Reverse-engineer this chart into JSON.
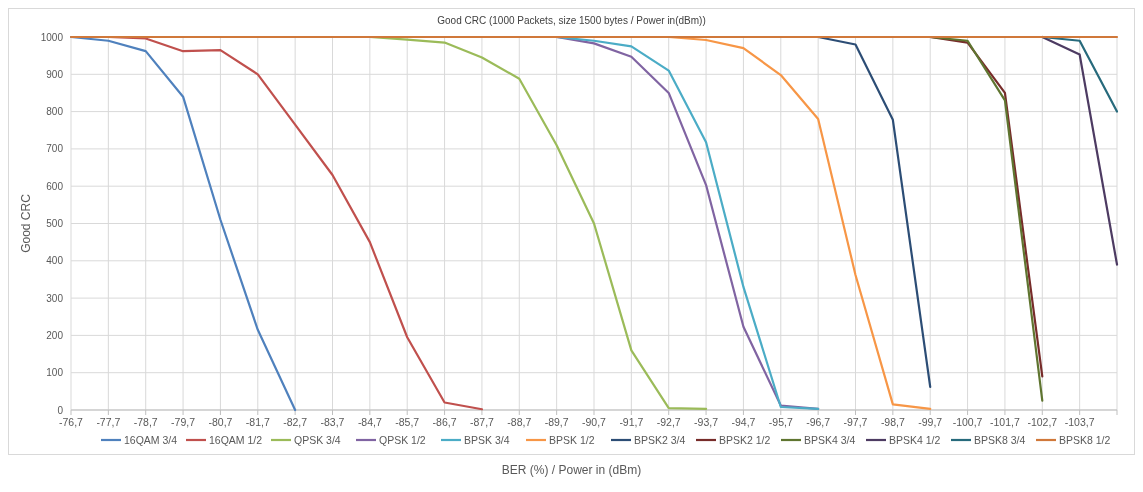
{
  "chart_data": {
    "type": "line",
    "title": "Good CRC (1000 Packets, size 1500 bytes /  Power in(dBm))",
    "xlabel": "BER (%) / Power in (dBm)",
    "ylabel": "Good CRC",
    "categories": [
      "-76,7",
      "-77,7",
      "-78,7",
      "-79,7",
      "-80,7",
      "-81,7",
      "-82,7",
      "-83,7",
      "-84,7",
      "-85,7",
      "-86,7",
      "-87,7",
      "-88,7",
      "-89,7",
      "-90,7",
      "-91,7",
      "-92,7",
      "-93,7",
      "-94,7",
      "-95,7",
      "-96,7",
      "-97,7",
      "-98,7",
      "-99,7",
      "-100,7",
      "-101,7",
      "-102,7",
      "-103,7",
      null
    ],
    "ylim": [
      0,
      1000
    ],
    "yticks": [
      0,
      100,
      200,
      300,
      400,
      500,
      600,
      700,
      800,
      900,
      1000
    ],
    "grid": true,
    "legend": "bottom",
    "line_style": "solid",
    "marker": "none",
    "series": [
      {
        "name": "16QAM 3/4",
        "color": "#4f81bd",
        "values": [
          1000,
          990,
          962,
          840,
          510,
          215,
          0,
          null,
          null,
          null,
          null,
          null,
          null,
          null,
          null,
          null,
          null,
          null,
          null,
          null,
          null,
          null,
          null,
          null,
          null,
          null,
          null,
          null,
          null
        ]
      },
      {
        "name": "16QAM 1/2",
        "color": "#c0504d",
        "values": [
          null,
          1000,
          996,
          962,
          965,
          900,
          765,
          630,
          450,
          195,
          20,
          2,
          null,
          null,
          null,
          null,
          null,
          null,
          null,
          null,
          null,
          null,
          null,
          null,
          null,
          null,
          null,
          null,
          null
        ]
      },
      {
        "name": "QPSK 3/4",
        "color": "#9bbb59",
        "values": [
          null,
          null,
          null,
          null,
          null,
          null,
          null,
          null,
          1000,
          993,
          985,
          945,
          888,
          710,
          500,
          160,
          5,
          3,
          null,
          null,
          null,
          null,
          null,
          null,
          null,
          null,
          null,
          null,
          null
        ]
      },
      {
        "name": "QPSK 1/2",
        "color": "#8064a2",
        "values": [
          null,
          null,
          null,
          null,
          null,
          null,
          null,
          null,
          null,
          null,
          null,
          null,
          null,
          1000,
          983,
          947,
          850,
          603,
          223,
          12,
          3,
          null,
          null,
          null,
          null,
          null,
          null,
          null,
          null
        ]
      },
      {
        "name": "BPSK 3/4",
        "color": "#4bacc6",
        "values": [
          null,
          null,
          null,
          null,
          null,
          null,
          null,
          null,
          null,
          null,
          null,
          null,
          null,
          1000,
          990,
          975,
          910,
          718,
          330,
          8,
          3,
          null,
          null,
          null,
          null,
          null,
          null,
          null,
          null
        ]
      },
      {
        "name": "BPSK 1/2",
        "color": "#f79646",
        "values": [
          null,
          null,
          null,
          null,
          null,
          null,
          null,
          null,
          null,
          null,
          null,
          null,
          null,
          null,
          null,
          null,
          1000,
          992,
          970,
          898,
          780,
          362,
          15,
          3,
          null,
          null,
          null,
          null,
          null
        ]
      },
      {
        "name": "BPSK2 3/4",
        "color": "#2c4d75",
        "values": [
          null,
          null,
          null,
          null,
          null,
          null,
          null,
          null,
          null,
          null,
          null,
          null,
          null,
          null,
          null,
          null,
          null,
          null,
          null,
          null,
          1000,
          980,
          778,
          62,
          null,
          null,
          null,
          null,
          null
        ]
      },
      {
        "name": "BPSK2 1/2",
        "color": "#772c2a",
        "values": [
          null,
          null,
          null,
          null,
          null,
          null,
          null,
          null,
          null,
          null,
          null,
          null,
          null,
          null,
          null,
          null,
          null,
          null,
          null,
          null,
          null,
          null,
          null,
          1000,
          985,
          850,
          90,
          null,
          null
        ]
      },
      {
        "name": "BPSK4 3/4",
        "color": "#5f7530",
        "values": [
          null,
          null,
          null,
          null,
          null,
          null,
          null,
          null,
          null,
          null,
          null,
          null,
          null,
          null,
          null,
          null,
          null,
          null,
          null,
          null,
          null,
          null,
          null,
          1000,
          990,
          830,
          25,
          null,
          null
        ]
      },
      {
        "name": "BPSK4 1/2",
        "color": "#4d3b62",
        "values": [
          null,
          null,
          null,
          null,
          null,
          null,
          null,
          null,
          null,
          null,
          null,
          null,
          null,
          null,
          null,
          null,
          null,
          null,
          null,
          null,
          null,
          null,
          null,
          null,
          null,
          null,
          1000,
          953,
          390
        ]
      },
      {
        "name": "BPSK8 3/4",
        "color": "#276a7c",
        "values": [
          null,
          null,
          null,
          null,
          null,
          null,
          null,
          null,
          null,
          null,
          null,
          null,
          null,
          null,
          null,
          null,
          null,
          null,
          null,
          null,
          null,
          null,
          null,
          null,
          null,
          null,
          1000,
          990,
          800
        ]
      },
      {
        "name": "BPSK8 1/2",
        "color": "#d0783a",
        "values": [
          1000,
          1000,
          1000,
          1000,
          1000,
          1000,
          1000,
          1000,
          1000,
          1000,
          1000,
          1000,
          1000,
          1000,
          1000,
          1000,
          1000,
          1000,
          1000,
          1000,
          1000,
          1000,
          1000,
          1000,
          1000,
          1000,
          1000,
          1000,
          1000
        ]
      }
    ]
  }
}
